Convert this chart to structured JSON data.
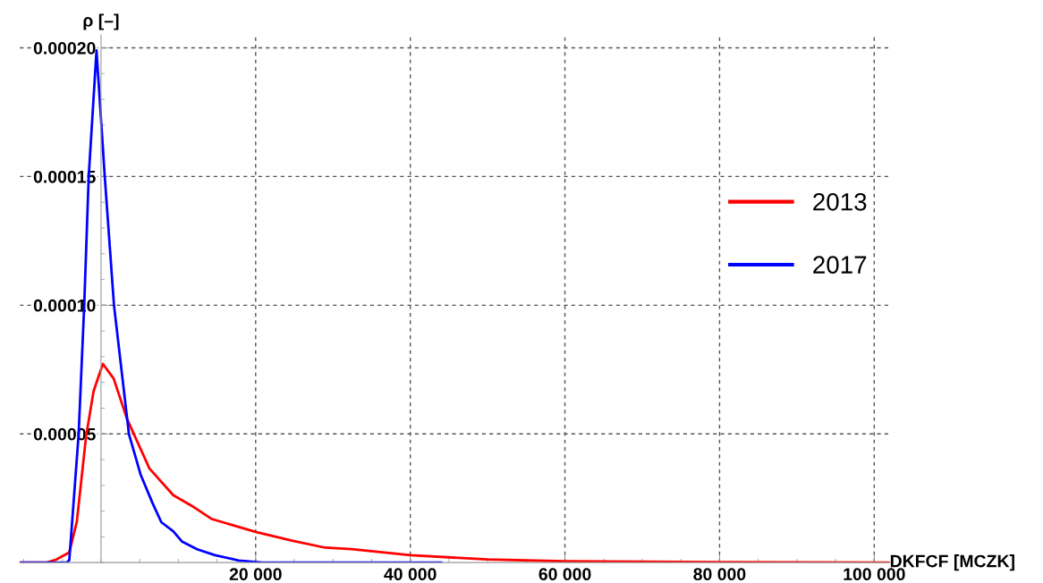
{
  "chart_data": {
    "type": "line",
    "xlabel": "DKFCF [MCZK]",
    "ylabel": "ρ [–]",
    "xlim": [
      -10500,
      102000
    ],
    "ylim": [
      0,
      0.000205
    ],
    "xticks": [
      {
        "value": 20000,
        "label": "20 000"
      },
      {
        "value": 40000,
        "label": "40 000"
      },
      {
        "value": 60000,
        "label": "60 000"
      },
      {
        "value": 80000,
        "label": "80 000"
      },
      {
        "value": 100000,
        "label": "100 000"
      }
    ],
    "yticks": [
      {
        "value": 5e-05,
        "label": "0.00005"
      },
      {
        "value": 0.0001,
        "label": "0.00010"
      },
      {
        "value": 0.00015,
        "label": "0.00015"
      },
      {
        "value": 0.0002,
        "label": "0.00020"
      }
    ],
    "grid": true,
    "legend": "right",
    "marker": "none",
    "line_style": "solid",
    "series": [
      {
        "name": "2013",
        "color": "#ff0000",
        "x": [
          -10400,
          -7000,
          -5780,
          -4100,
          -3130,
          -1930,
          -960,
          240,
          1640,
          3370,
          6260,
          9340,
          12040,
          14350,
          20000,
          24700,
          28990,
          32420,
          40000,
          50000,
          60000,
          80000,
          102000
        ],
        "values": [
          0,
          0,
          1.2e-06,
          4e-06,
          1.58e-05,
          4.9e-05,
          6.66e-05,
          7.72e-05,
          7.15e-05,
          5.58e-05,
          3.66e-05,
          2.62e-05,
          2.15e-05,
          1.69e-05,
          1.19e-05,
          8.5e-06,
          5.8e-06,
          5.2e-06,
          2.9e-06,
          1.2e-06,
          5e-07,
          2e-07,
          0
        ]
      },
      {
        "name": "2017",
        "color": "#0000ff",
        "x": [
          -10400,
          -4400,
          -4100,
          -2890,
          -2170,
          -1590,
          -580,
          485,
          1680,
          3610,
          5110,
          6650,
          7800,
          9340,
          10500,
          12430,
          14740,
          17820,
          20860,
          44000
        ],
        "values": [
          0,
          0,
          1e-06,
          5e-05,
          0.0001,
          0.00015,
          0.000199,
          0.00015,
          0.0001,
          5e-05,
          3.43e-05,
          2.32e-05,
          1.57e-05,
          1.22e-05,
          8.1e-06,
          5.2e-06,
          2.9e-06,
          8e-07,
          0,
          0
        ]
      }
    ]
  }
}
